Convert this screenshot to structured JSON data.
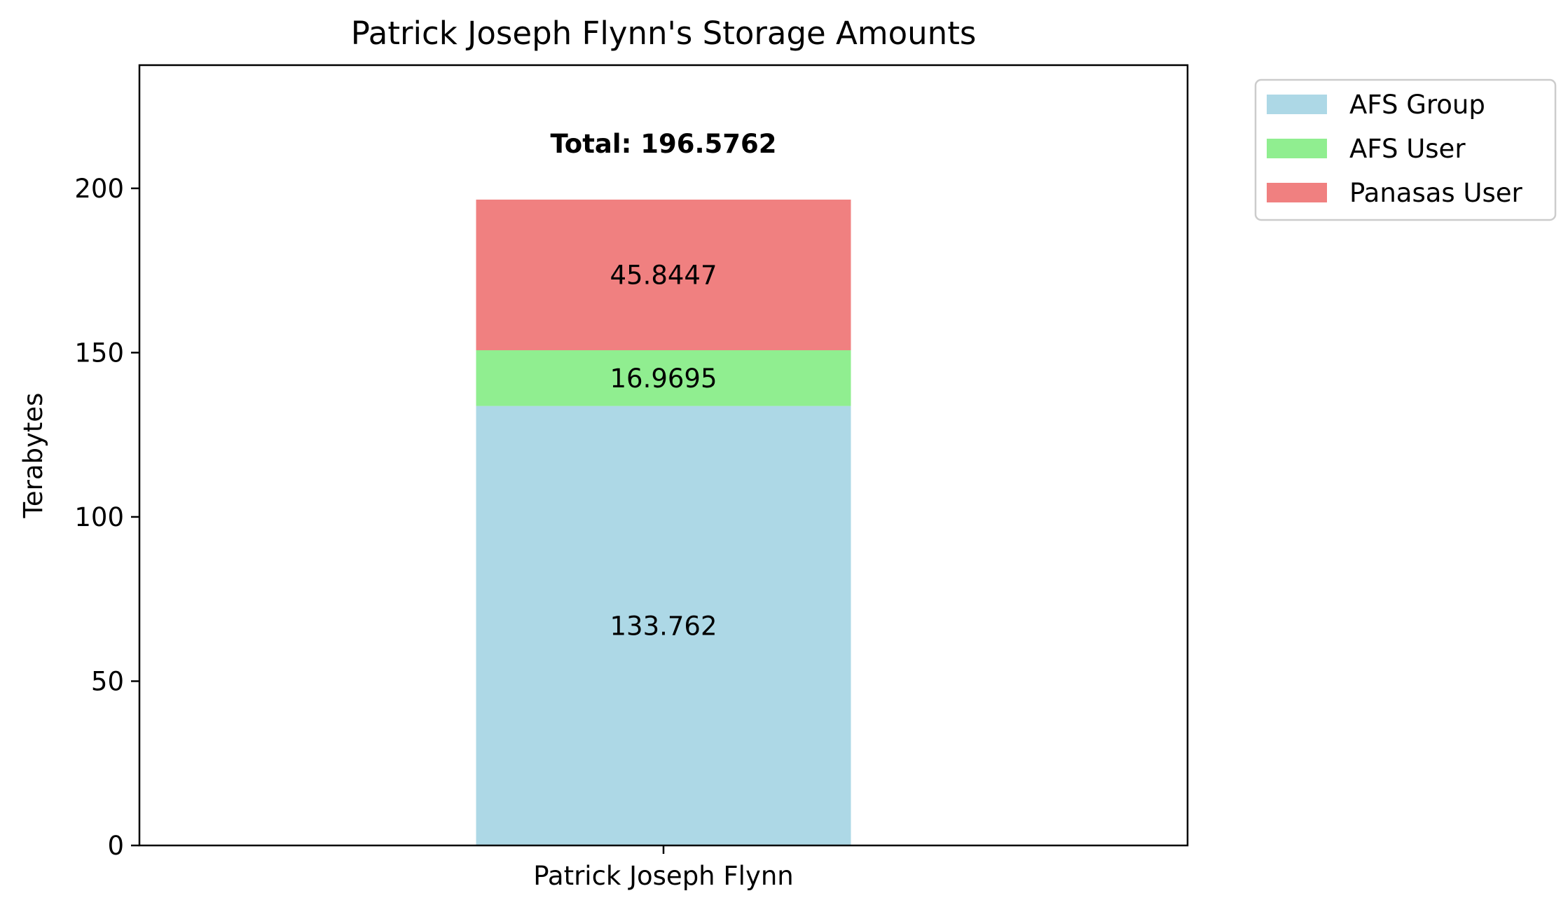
{
  "chart_data": {
    "type": "bar",
    "stacked": true,
    "title": "Patrick Joseph Flynn's Storage Amounts",
    "xlabel": "",
    "ylabel": "Terabytes",
    "categories": [
      "Patrick Joseph Flynn"
    ],
    "series": [
      {
        "name": "AFS Group",
        "values": [
          133.762
        ],
        "value_labels": [
          "133.762"
        ],
        "color": "#add8e6"
      },
      {
        "name": "AFS User",
        "values": [
          16.9695
        ],
        "value_labels": [
          "16.9695"
        ],
        "color": "#90ee90"
      },
      {
        "name": "Panasas User",
        "values": [
          45.8447
        ],
        "value_labels": [
          "45.8447"
        ],
        "color": "#f08080"
      }
    ],
    "totals": [
      "Total: 196.5762"
    ],
    "ylim": [
      0,
      237.5
    ],
    "yticks": [
      0,
      50,
      100,
      150,
      200
    ],
    "ytick_labels": [
      "0",
      "50",
      "100",
      "150",
      "200"
    ],
    "grid": false,
    "legend_position": "outside-top-right"
  }
}
